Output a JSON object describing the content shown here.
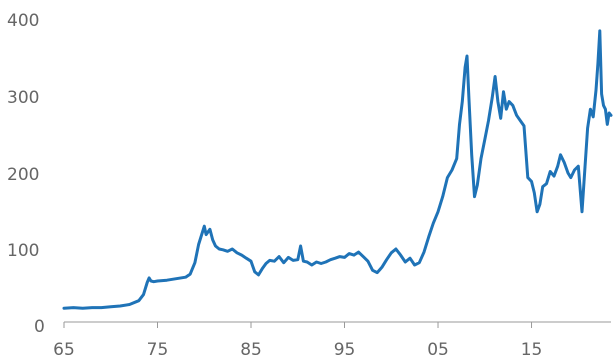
{
  "chart_data": {
    "type": "line",
    "title": "",
    "xlabel": "",
    "ylabel": "",
    "xlim": [
      1965,
      2023.5
    ],
    "ylim": [
      0,
      400
    ],
    "grid": false,
    "legend": "none",
    "x_tick_values": [
      1965,
      1975,
      1985,
      1995,
      2005,
      2015
    ],
    "x_tick_labels": [
      "65",
      "75",
      "85",
      "95",
      "05",
      "15"
    ],
    "y_tick_values": [
      0,
      100,
      200,
      300,
      400
    ],
    "y_tick_labels": [
      "0",
      "100",
      "200",
      "300",
      "400"
    ],
    "colors": {
      "series": "#1f73b7",
      "axis": "#9a9a9a",
      "tick_text": "#666666"
    },
    "series": [
      {
        "x": [
          1965,
          1966,
          1967,
          1968,
          1969,
          1970,
          1971,
          1972,
          1973,
          1973.5,
          1973.9,
          1974.1,
          1974.3,
          1974.6,
          1975,
          1976,
          1977,
          1978,
          1978.5,
          1979,
          1979.4,
          1979.8,
          1980.0,
          1980.2,
          1980.6,
          1980.9,
          1981.2,
          1981.6,
          1982,
          1982.5,
          1983,
          1983.5,
          1984,
          1984.5,
          1985,
          1985.4,
          1985.8,
          1986.2,
          1986.6,
          1987,
          1987.5,
          1988,
          1988.5,
          1989,
          1989.5,
          1990,
          1990.3,
          1990.6,
          1991,
          1991.5,
          1992,
          1992.5,
          1993,
          1993.5,
          1994,
          1994.5,
          1995,
          1995.5,
          1996,
          1996.5,
          1997,
          1997.5,
          1998,
          1998.5,
          1999,
          1999.5,
          2000,
          2000.5,
          2001,
          2001.5,
          2002,
          2002.5,
          2003,
          2003.5,
          2004,
          2004.5,
          2005,
          2005.5,
          2006,
          2006.5,
          2007,
          2007.3,
          2007.6,
          2007.9,
          2008.1,
          2008.3,
          2008.6,
          2008.9,
          2009.2,
          2009.6,
          2010,
          2010.4,
          2010.8,
          2011.1,
          2011.4,
          2011.7,
          2012,
          2012.3,
          2012.6,
          2013,
          2013.4,
          2013.8,
          2014.2,
          2014.6,
          2015,
          2015.3,
          2015.6,
          2015.9,
          2016.2,
          2016.6,
          2017,
          2017.4,
          2017.8,
          2018.1,
          2018.5,
          2018.9,
          2019.2,
          2019.6,
          2020,
          2020.4,
          2020.7,
          2021,
          2021.3,
          2021.6,
          2021.9,
          2022.1,
          2022.3,
          2022.5,
          2022.7,
          2022.9,
          2023.1,
          2023.3,
          2023.5
        ],
        "y": [
          18,
          19,
          18,
          19,
          19,
          20,
          21,
          23,
          28,
          36,
          52,
          58,
          54,
          53,
          54,
          55,
          57,
          59,
          63,
          78,
          102,
          118,
          126,
          115,
          122,
          108,
          100,
          96,
          95,
          93,
          96,
          91,
          88,
          84,
          80,
          66,
          62,
          70,
          77,
          81,
          80,
          86,
          78,
          85,
          81,
          82,
          100,
          80,
          79,
          75,
          79,
          77,
          79,
          82,
          84,
          86,
          85,
          90,
          88,
          92,
          86,
          80,
          68,
          65,
          72,
          82,
          91,
          96,
          88,
          79,
          84,
          75,
          78,
          92,
          112,
          130,
          145,
          165,
          190,
          200,
          215,
          260,
          290,
          335,
          350,
          295,
          220,
          165,
          180,
          215,
          240,
          265,
          295,
          323,
          290,
          268,
          303,
          280,
          290,
          285,
          272,
          265,
          258,
          190,
          185,
          170,
          145,
          155,
          178,
          182,
          198,
          192,
          205,
          220,
          210,
          196,
          190,
          200,
          205,
          145,
          200,
          255,
          280,
          270,
          305,
          340,
          383,
          300,
          285,
          280,
          260,
          275,
          272
        ]
      }
    ]
  }
}
